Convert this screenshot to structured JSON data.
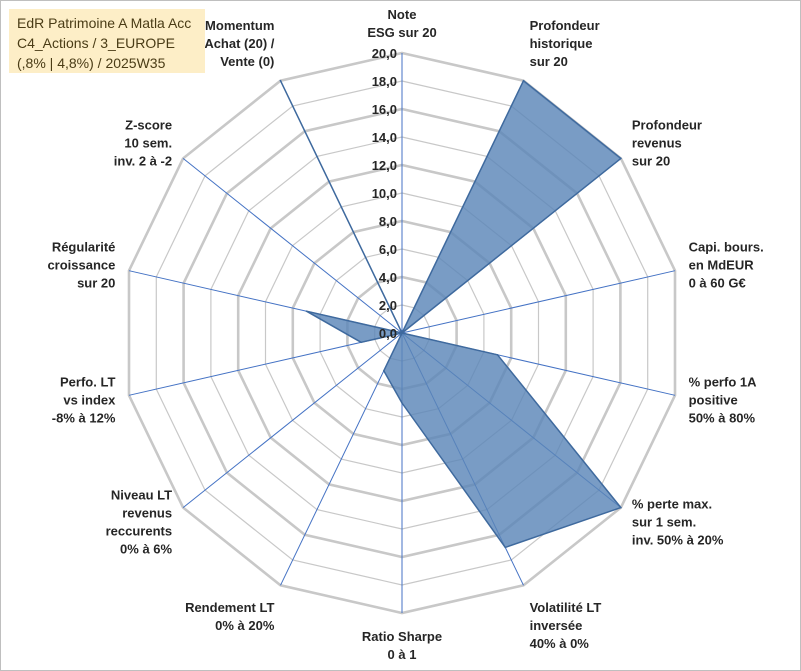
{
  "title_lines": [
    "EdR Patrimoine A Matla Acc",
    "C4_Actions / 3_EUROPE",
    "(,8% | 4,8%) / 2025W35"
  ],
  "colors": {
    "fill": "#5b86b8",
    "stroke": "#3f6a9e",
    "spoke": "#4472c4",
    "grid": "#c8c8c8",
    "title_bg": "#fdeec7"
  },
  "chart_data": {
    "type": "radar",
    "rmin": 0,
    "rmax": 20,
    "tick_step": 2,
    "tick_labels": [
      "0,0",
      "2,0",
      "4,0",
      "6,0",
      "8,0",
      "10,0",
      "12,0",
      "14,0",
      "16,0",
      "18,0",
      "20,0"
    ],
    "grid": true,
    "categories": [
      [
        "Note",
        "ESG sur 20"
      ],
      [
        "Profondeur",
        "historique",
        "sur 20"
      ],
      [
        "Profondeur",
        "revenus",
        "sur 20"
      ],
      [
        "Capi. bours.",
        "en MdEUR",
        "0 à 60 G€"
      ],
      [
        "% perfo 1A",
        "positive",
        "50% à 80%"
      ],
      [
        "% perte max.",
        "sur 1 sem.",
        "inv. 50% à 20%"
      ],
      [
        "Volatilité LT",
        "inversée",
        "40% à 0%"
      ],
      [
        "Ratio Sharpe",
        "0 à 1"
      ],
      [
        "Rendement LT",
        "0% à 20%"
      ],
      [
        "Niveau LT",
        "revenus",
        "reccurents",
        "0% à 6%"
      ],
      [
        "Perfo. LT",
        "vs index",
        "-8% à 12%"
      ],
      [
        "Régularité",
        "croissance",
        "sur 20"
      ],
      [
        "Z-score",
        "10 sem.",
        "inv. 2 à -2"
      ],
      [
        "Momentum",
        "Achat (20) /",
        "Vente (0)"
      ]
    ],
    "values": [
      0,
      20,
      20,
      0,
      7,
      20,
      17,
      5,
      3,
      0,
      3,
      7,
      0,
      20
    ]
  }
}
